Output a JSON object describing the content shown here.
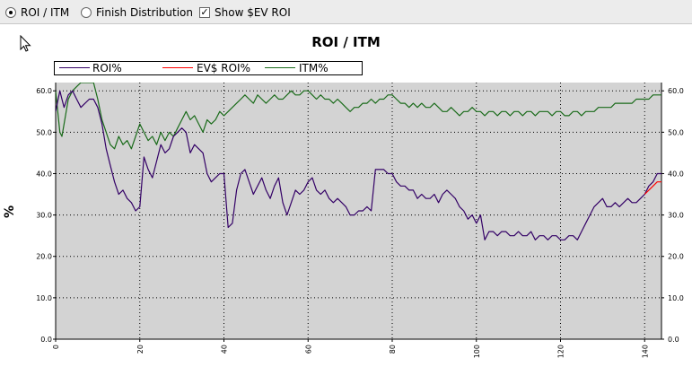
{
  "toolbar": {
    "options": [
      {
        "label": "ROI / ITM",
        "selected": true
      },
      {
        "label": "Finish Distribution",
        "selected": false
      }
    ],
    "show_ev": {
      "label": "Show $EV ROI",
      "checked": true
    }
  },
  "chart_data": {
    "type": "line",
    "title": "ROI / ITM",
    "ylabel": "%",
    "xlabel": "",
    "xlim": [
      0,
      144
    ],
    "ylim": [
      0,
      62
    ],
    "x_ticks": [
      "0",
      "20",
      "40",
      "60",
      "80",
      "100",
      "120",
      "140"
    ],
    "y_ticks": [
      "0.0",
      "10.0",
      "20.0",
      "30.0",
      "40.0",
      "50.0",
      "60.0"
    ],
    "grid": true,
    "legend_position": "top-left",
    "series": [
      {
        "name": "ROI%",
        "color": "#330066",
        "points": [
          [
            0,
            55
          ],
          [
            1,
            60
          ],
          [
            1.5,
            58
          ],
          [
            2,
            56
          ],
          [
            3,
            59
          ],
          [
            4,
            60
          ],
          [
            5,
            58
          ],
          [
            6,
            56
          ],
          [
            7,
            57
          ],
          [
            8,
            58
          ],
          [
            9,
            58
          ],
          [
            10,
            56
          ],
          [
            11,
            52
          ],
          [
            12,
            46
          ],
          [
            13,
            42
          ],
          [
            14,
            38
          ],
          [
            15,
            35
          ],
          [
            16,
            36
          ],
          [
            17,
            34
          ],
          [
            18,
            33
          ],
          [
            19,
            31
          ],
          [
            20,
            32
          ],
          [
            21,
            44
          ],
          [
            22,
            41
          ],
          [
            23,
            39
          ],
          [
            24,
            43
          ],
          [
            25,
            47
          ],
          [
            26,
            45
          ],
          [
            27,
            46
          ],
          [
            28,
            49
          ],
          [
            29,
            50
          ],
          [
            30,
            51
          ],
          [
            31,
            50
          ],
          [
            32,
            45
          ],
          [
            33,
            47
          ],
          [
            34,
            46
          ],
          [
            35,
            45
          ],
          [
            36,
            40
          ],
          [
            37,
            38
          ],
          [
            38,
            39
          ],
          [
            39,
            40
          ],
          [
            40,
            40
          ],
          [
            41,
            27
          ],
          [
            42,
            28
          ],
          [
            43,
            36
          ],
          [
            44,
            40
          ],
          [
            45,
            41
          ],
          [
            46,
            38
          ],
          [
            47,
            35
          ],
          [
            48,
            37
          ],
          [
            49,
            39
          ],
          [
            50,
            36
          ],
          [
            51,
            34
          ],
          [
            52,
            37
          ],
          [
            53,
            39
          ],
          [
            54,
            33
          ],
          [
            55,
            30
          ],
          [
            56,
            33
          ],
          [
            57,
            36
          ],
          [
            58,
            35
          ],
          [
            59,
            36
          ],
          [
            60,
            38
          ],
          [
            61,
            39
          ],
          [
            62,
            36
          ],
          [
            63,
            35
          ],
          [
            64,
            36
          ],
          [
            65,
            34
          ],
          [
            66,
            33
          ],
          [
            67,
            34
          ],
          [
            68,
            33
          ],
          [
            69,
            32
          ],
          [
            70,
            30
          ],
          [
            71,
            30
          ],
          [
            72,
            31
          ],
          [
            73,
            31
          ],
          [
            74,
            32
          ],
          [
            75,
            31
          ],
          [
            76,
            41
          ],
          [
            77,
            41
          ],
          [
            78,
            41
          ],
          [
            79,
            40
          ],
          [
            80,
            40
          ],
          [
            81,
            38
          ],
          [
            82,
            37
          ],
          [
            83,
            37
          ],
          [
            84,
            36
          ],
          [
            85,
            36
          ],
          [
            86,
            34
          ],
          [
            87,
            35
          ],
          [
            88,
            34
          ],
          [
            89,
            34
          ],
          [
            90,
            35
          ],
          [
            91,
            33
          ],
          [
            92,
            35
          ],
          [
            93,
            36
          ],
          [
            94,
            35
          ],
          [
            95,
            34
          ],
          [
            96,
            32
          ],
          [
            97,
            31
          ],
          [
            98,
            29
          ],
          [
            99,
            30
          ],
          [
            100,
            28
          ],
          [
            101,
            30
          ],
          [
            102,
            24
          ],
          [
            103,
            26
          ],
          [
            104,
            26
          ],
          [
            105,
            25
          ],
          [
            106,
            26
          ],
          [
            107,
            26
          ],
          [
            108,
            25
          ],
          [
            109,
            25
          ],
          [
            110,
            26
          ],
          [
            111,
            25
          ],
          [
            112,
            25
          ],
          [
            113,
            26
          ],
          [
            114,
            24
          ],
          [
            115,
            25
          ],
          [
            116,
            25
          ],
          [
            117,
            24
          ],
          [
            118,
            25
          ],
          [
            119,
            25
          ],
          [
            120,
            24
          ],
          [
            121,
            24
          ],
          [
            122,
            25
          ],
          [
            123,
            25
          ],
          [
            124,
            24
          ],
          [
            125,
            26
          ],
          [
            126,
            28
          ],
          [
            127,
            30
          ],
          [
            128,
            32
          ],
          [
            129,
            33
          ],
          [
            130,
            34
          ],
          [
            131,
            32
          ],
          [
            132,
            32
          ],
          [
            133,
            33
          ],
          [
            134,
            32
          ],
          [
            135,
            33
          ],
          [
            136,
            34
          ],
          [
            137,
            33
          ],
          [
            138,
            33
          ],
          [
            139,
            34
          ],
          [
            140,
            35
          ],
          [
            141,
            37
          ],
          [
            142,
            38
          ],
          [
            143,
            40
          ],
          [
            144,
            40
          ]
        ]
      },
      {
        "name": "EV$ ROI%",
        "color": "#ff0000",
        "points": [
          [
            140,
            35
          ],
          [
            141,
            36
          ],
          [
            142,
            37
          ],
          [
            143,
            38
          ],
          [
            144,
            38
          ]
        ]
      },
      {
        "name": "ITM%",
        "color": "#1a6b1a",
        "points": [
          [
            0,
            60
          ],
          [
            1,
            50
          ],
          [
            1.5,
            49
          ],
          [
            2,
            52
          ],
          [
            3,
            58
          ],
          [
            4,
            60
          ],
          [
            5,
            61
          ],
          [
            6,
            62
          ],
          [
            7,
            62
          ],
          [
            8,
            62
          ],
          [
            9,
            62
          ],
          [
            10,
            58
          ],
          [
            11,
            53
          ],
          [
            12,
            50
          ],
          [
            13,
            47
          ],
          [
            14,
            46
          ],
          [
            15,
            49
          ],
          [
            16,
            47
          ],
          [
            17,
            48
          ],
          [
            18,
            46
          ],
          [
            19,
            49
          ],
          [
            20,
            52
          ],
          [
            21,
            50
          ],
          [
            22,
            48
          ],
          [
            23,
            49
          ],
          [
            24,
            47
          ],
          [
            25,
            50
          ],
          [
            26,
            48
          ],
          [
            27,
            50
          ],
          [
            28,
            49
          ],
          [
            29,
            51
          ],
          [
            30,
            53
          ],
          [
            31,
            55
          ],
          [
            32,
            53
          ],
          [
            33,
            54
          ],
          [
            34,
            52
          ],
          [
            35,
            50
          ],
          [
            36,
            53
          ],
          [
            37,
            52
          ],
          [
            38,
            53
          ],
          [
            39,
            55
          ],
          [
            40,
            54
          ],
          [
            41,
            55
          ],
          [
            42,
            56
          ],
          [
            43,
            57
          ],
          [
            44,
            58
          ],
          [
            45,
            59
          ],
          [
            46,
            58
          ],
          [
            47,
            57
          ],
          [
            48,
            59
          ],
          [
            49,
            58
          ],
          [
            50,
            57
          ],
          [
            51,
            58
          ],
          [
            52,
            59
          ],
          [
            53,
            58
          ],
          [
            54,
            58
          ],
          [
            55,
            59
          ],
          [
            56,
            60
          ],
          [
            57,
            59
          ],
          [
            58,
            59
          ],
          [
            59,
            60
          ],
          [
            60,
            60
          ],
          [
            61,
            59
          ],
          [
            62,
            58
          ],
          [
            63,
            59
          ],
          [
            64,
            58
          ],
          [
            65,
            58
          ],
          [
            66,
            57
          ],
          [
            67,
            58
          ],
          [
            68,
            57
          ],
          [
            69,
            56
          ],
          [
            70,
            55
          ],
          [
            71,
            56
          ],
          [
            72,
            56
          ],
          [
            73,
            57
          ],
          [
            74,
            57
          ],
          [
            75,
            58
          ],
          [
            76,
            57
          ],
          [
            77,
            58
          ],
          [
            78,
            58
          ],
          [
            79,
            59
          ],
          [
            80,
            59
          ],
          [
            81,
            58
          ],
          [
            82,
            57
          ],
          [
            83,
            57
          ],
          [
            84,
            56
          ],
          [
            85,
            57
          ],
          [
            86,
            56
          ],
          [
            87,
            57
          ],
          [
            88,
            56
          ],
          [
            89,
            56
          ],
          [
            90,
            57
          ],
          [
            91,
            56
          ],
          [
            92,
            55
          ],
          [
            93,
            55
          ],
          [
            94,
            56
          ],
          [
            95,
            55
          ],
          [
            96,
            54
          ],
          [
            97,
            55
          ],
          [
            98,
            55
          ],
          [
            99,
            56
          ],
          [
            100,
            55
          ],
          [
            101,
            55
          ],
          [
            102,
            54
          ],
          [
            103,
            55
          ],
          [
            104,
            55
          ],
          [
            105,
            54
          ],
          [
            106,
            55
          ],
          [
            107,
            55
          ],
          [
            108,
            54
          ],
          [
            109,
            55
          ],
          [
            110,
            55
          ],
          [
            111,
            54
          ],
          [
            112,
            55
          ],
          [
            113,
            55
          ],
          [
            114,
            54
          ],
          [
            115,
            55
          ],
          [
            116,
            55
          ],
          [
            117,
            55
          ],
          [
            118,
            54
          ],
          [
            119,
            55
          ],
          [
            120,
            55
          ],
          [
            121,
            54
          ],
          [
            122,
            54
          ],
          [
            123,
            55
          ],
          [
            124,
            55
          ],
          [
            125,
            54
          ],
          [
            126,
            55
          ],
          [
            127,
            55
          ],
          [
            128,
            55
          ],
          [
            129,
            56
          ],
          [
            130,
            56
          ],
          [
            131,
            56
          ],
          [
            132,
            56
          ],
          [
            133,
            57
          ],
          [
            134,
            57
          ],
          [
            135,
            57
          ],
          [
            136,
            57
          ],
          [
            137,
            57
          ],
          [
            138,
            58
          ],
          [
            139,
            58
          ],
          [
            140,
            58
          ],
          [
            141,
            58
          ],
          [
            142,
            59
          ],
          [
            143,
            59
          ],
          [
            144,
            59
          ]
        ]
      }
    ]
  }
}
